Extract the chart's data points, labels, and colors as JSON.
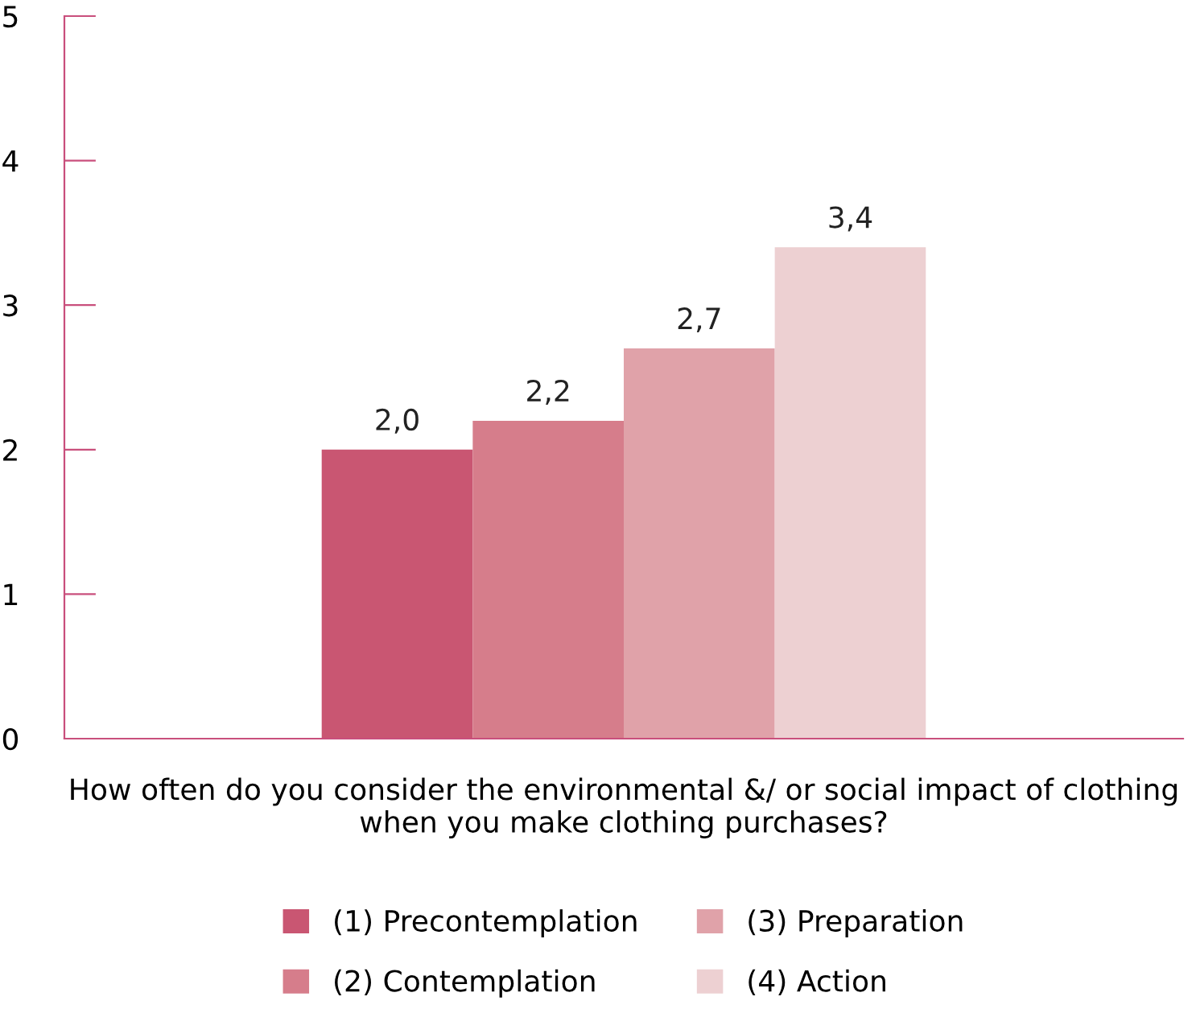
{
  "chart_data": {
    "type": "bar",
    "categories": [
      null
    ],
    "xlabel": "How often do you consider the environmental &/ or social impact of clothing when you make clothing purchases?",
    "series": [
      {
        "name": "(1) Precontemplation",
        "color": "#c95672",
        "values": [
          2.0
        ],
        "value_labels": [
          "2,0"
        ]
      },
      {
        "name": "(2) Contemplation",
        "color": "#d67d8b",
        "values": [
          2.2
        ],
        "value_labels": [
          "2,2"
        ]
      },
      {
        "name": "(3) Preparation",
        "color": "#e0a2a9",
        "values": [
          2.7
        ],
        "value_labels": [
          "2,7"
        ]
      },
      {
        "name": "(4) Action",
        "color": "#edd0d2",
        "values": [
          3.4
        ],
        "value_labels": [
          "3,4"
        ]
      }
    ],
    "ylim": [
      0,
      5
    ],
    "yticks": [
      0,
      1,
      2,
      3,
      4,
      5
    ],
    "grid": false,
    "legend": "bottom"
  }
}
